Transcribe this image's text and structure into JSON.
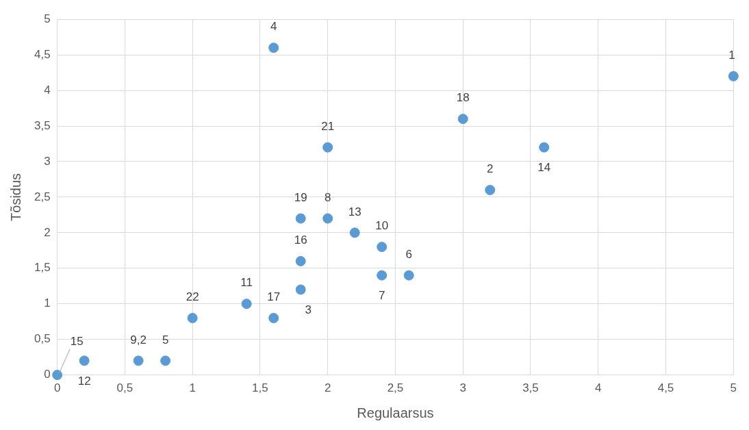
{
  "chart_data": {
    "type": "scatter",
    "xlabel": "Regulaarsus",
    "ylabel": "Tõsidus",
    "grid": true,
    "legend": false,
    "marker": "circle",
    "xlim": [
      0,
      5
    ],
    "ylim": [
      0,
      5
    ],
    "xticks": [
      0,
      {
        "value": 0.5,
        "label": "0,5"
      },
      1,
      {
        "value": 1.5,
        "label": "1,5"
      },
      2,
      {
        "value": 2.5,
        "label": "2,5"
      },
      3,
      {
        "value": 3.5,
        "label": "3,5"
      },
      4,
      {
        "value": 4.5,
        "label": "4,5"
      },
      5
    ],
    "yticks": [
      0,
      {
        "value": 0.5,
        "label": "0,5"
      },
      1,
      {
        "value": 1.5,
        "label": "1,5"
      },
      2,
      {
        "value": 2.5,
        "label": "2,5"
      },
      3,
      {
        "value": 3.5,
        "label": "3,5"
      },
      4,
      {
        "value": 4.5,
        "label": "4,5"
      },
      5
    ],
    "series": [
      {
        "color": "#5b9bd5",
        "x": [
          5,
          1.6,
          3,
          2,
          3.6,
          3.2,
          1.8,
          2,
          2.2,
          2.4,
          1.8,
          2.4,
          2.6,
          1.8,
          1.4,
          1.6,
          1,
          0.6,
          0.8,
          0.2,
          0
        ],
        "values": [
          4.2,
          4.6,
          3.6,
          3.2,
          3.2,
          2.6,
          2.2,
          2.2,
          2,
          1.8,
          1.6,
          1.4,
          1.4,
          1.2,
          1,
          0.8,
          0.8,
          0.2,
          0.2,
          0.2,
          0
        ]
      }
    ],
    "annotations": [
      {
        "text": "1",
        "x": 5,
        "y": 4.2
      },
      {
        "text": "4",
        "x": 1.6,
        "y": 4.6
      },
      {
        "text": "18",
        "x": 3,
        "y": 3.6
      },
      {
        "text": "21",
        "x": 2,
        "y": 3.2
      },
      {
        "text": "14",
        "x": 3.6,
        "y": 3.2
      },
      {
        "text": "2",
        "x": 3.2,
        "y": 2.6
      },
      {
        "text": "19",
        "x": 1.8,
        "y": 2.2
      },
      {
        "text": "8",
        "x": 2,
        "y": 2.2
      },
      {
        "text": "13",
        "x": 2.2,
        "y": 2
      },
      {
        "text": "10",
        "x": 2.4,
        "y": 1.8
      },
      {
        "text": "16",
        "x": 1.8,
        "y": 1.6
      },
      {
        "text": "7",
        "x": 2.4,
        "y": 1.4
      },
      {
        "text": "6",
        "x": 2.6,
        "y": 1.4
      },
      {
        "text": "3",
        "x": 1.8,
        "y": 1.2
      },
      {
        "text": "11",
        "x": 1.4,
        "y": 1
      },
      {
        "text": "17",
        "x": 1.6,
        "y": 0.8
      },
      {
        "text": "22",
        "x": 1,
        "y": 0.8
      },
      {
        "text": "9,2",
        "x": 0.6,
        "y": 0.2
      },
      {
        "text": "5",
        "x": 0.8,
        "y": 0.2
      },
      {
        "text": "12",
        "x": 0.2,
        "y": 0.2
      },
      {
        "text": "15",
        "x": 0,
        "y": 0
      }
    ]
  }
}
